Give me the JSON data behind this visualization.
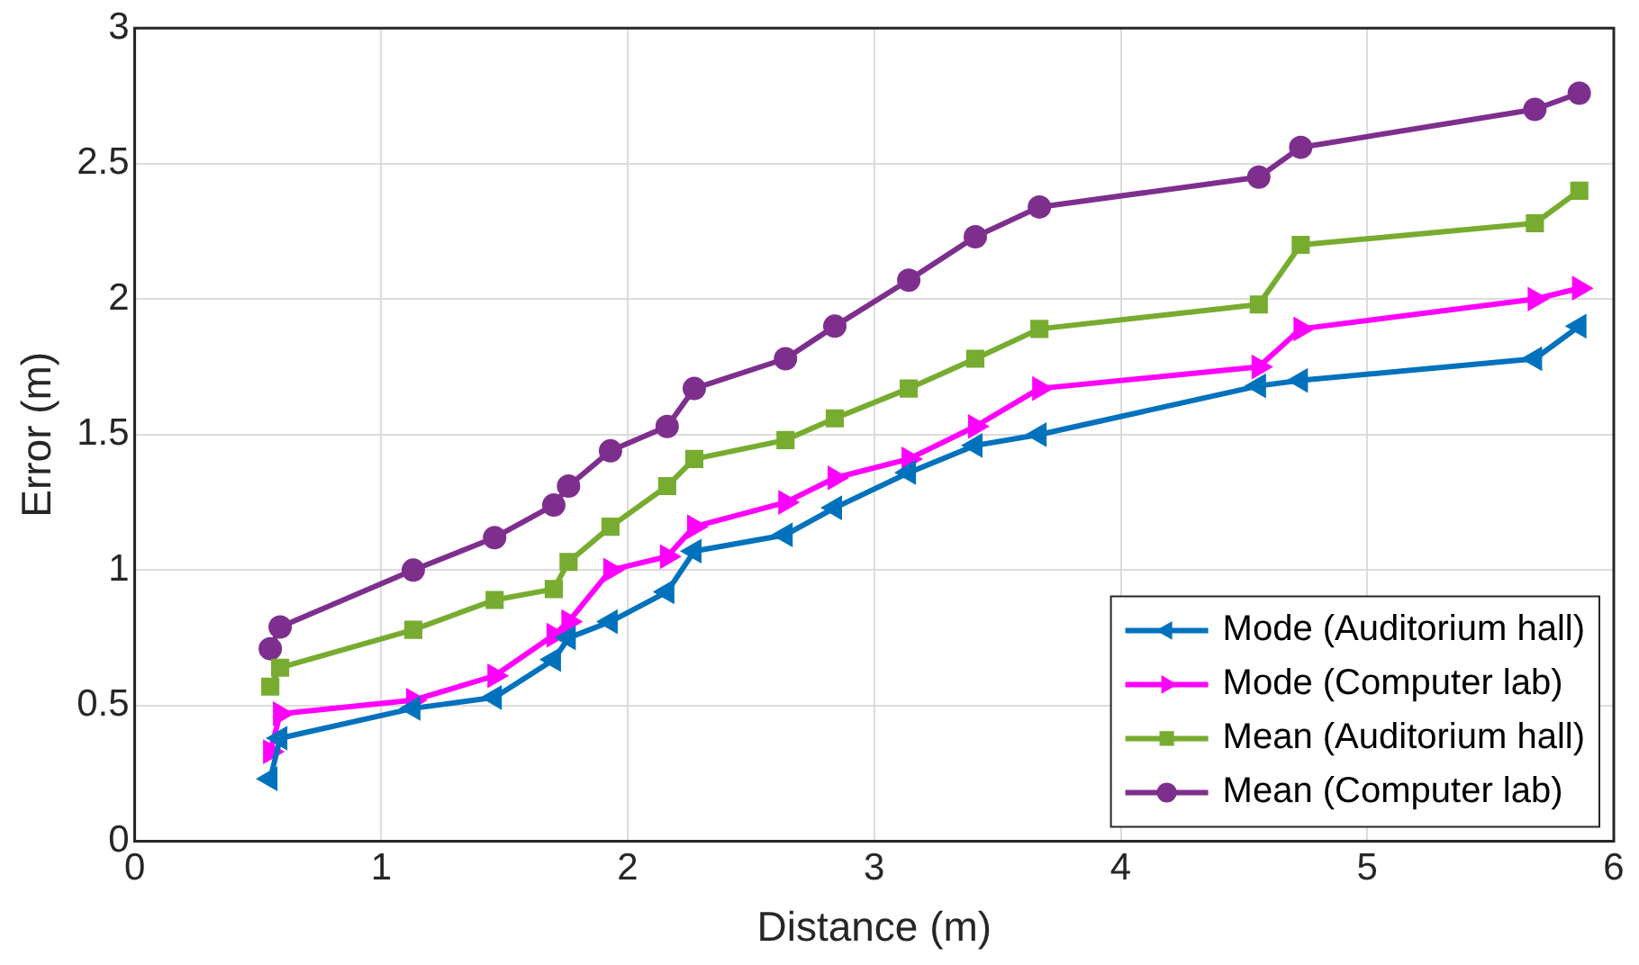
{
  "chart_data": {
    "type": "line",
    "xlabel": "Distance (m)",
    "ylabel": "Error (m)",
    "x": [
      0.55,
      0.59,
      1.13,
      1.46,
      1.7,
      1.76,
      1.93,
      2.16,
      2.27,
      2.64,
      2.84,
      3.14,
      3.41,
      3.67,
      4.56,
      4.73,
      5.68,
      5.86
    ],
    "series": [
      {
        "name": "Mode (Auditorium hall)",
        "color": "#0072bd",
        "marker": "triangle-left",
        "values": [
          0.23,
          0.38,
          0.49,
          0.53,
          0.67,
          0.75,
          0.81,
          0.92,
          1.07,
          1.13,
          1.23,
          1.36,
          1.46,
          1.5,
          1.68,
          1.7,
          1.78,
          1.9
        ]
      },
      {
        "name": "Mode (Computer lab)",
        "color": "#ff00ff",
        "marker": "triangle-right",
        "values": [
          0.33,
          0.47,
          0.52,
          0.61,
          0.76,
          0.81,
          1.0,
          1.05,
          1.16,
          1.25,
          1.34,
          1.41,
          1.53,
          1.67,
          1.75,
          1.89,
          2.0,
          2.04
        ]
      },
      {
        "name": "Mean (Auditorium hall)",
        "color": "#77ac30",
        "marker": "square",
        "values": [
          0.57,
          0.64,
          0.78,
          0.89,
          0.93,
          1.03,
          1.16,
          1.31,
          1.41,
          1.48,
          1.56,
          1.67,
          1.78,
          1.89,
          1.98,
          2.2,
          2.28,
          2.4
        ]
      },
      {
        "name": "Mean (Computer lab)",
        "color": "#7e2f8e",
        "marker": "circle",
        "values": [
          0.71,
          0.79,
          1.0,
          1.12,
          1.24,
          1.31,
          1.44,
          1.53,
          1.67,
          1.78,
          1.9,
          2.07,
          2.23,
          2.34,
          2.45,
          2.56,
          2.7,
          2.76
        ]
      }
    ],
    "xlim": [
      0,
      6
    ],
    "xticks": [
      0,
      1,
      2,
      3,
      4,
      5,
      6
    ],
    "ylim": [
      0,
      3
    ],
    "yticks": [
      0,
      0.5,
      1,
      1.5,
      2,
      2.5,
      3
    ],
    "grid": true,
    "legend": "bottom right",
    "line_style": "solid"
  }
}
